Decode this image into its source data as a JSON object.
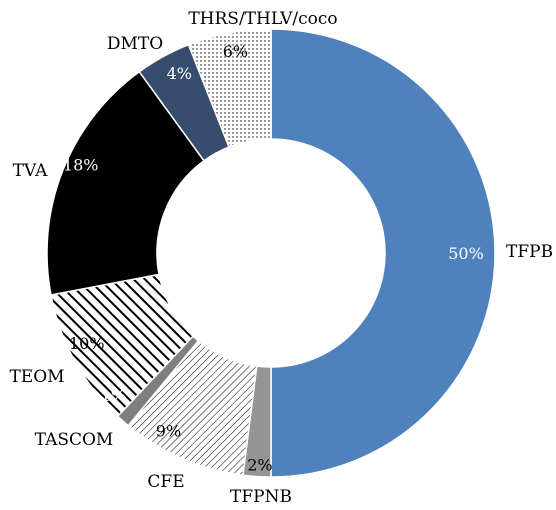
{
  "chart_data": {
    "type": "pie",
    "donut": true,
    "start_angle_deg": 0,
    "direction": "clockwise",
    "slices": [
      {
        "label": "TFPB",
        "value": 50,
        "value_label": "50%",
        "color": "#4f81bd",
        "pattern": "solid",
        "value_text_color": "#ffffff"
      },
      {
        "label": "TFPNB",
        "value": 2,
        "value_label": "2%",
        "color": "#959595",
        "pattern": "solid",
        "value_text_color": "#000000"
      },
      {
        "label": "CFE",
        "value": 9,
        "value_label": "9%",
        "color": "#000000",
        "pattern": "hatch-light",
        "value_text_color": "#000000"
      },
      {
        "label": "TASCOM",
        "value": 1,
        "value_label": "1%",
        "color": "#7f7f7f",
        "pattern": "solid",
        "value_text_color": "#ffffff"
      },
      {
        "label": "TEOM",
        "value": 10,
        "value_label": "10%",
        "color": "#000000",
        "pattern": "hatch-bold",
        "value_text_color": "#000000"
      },
      {
        "label": "TVA",
        "value": 18,
        "value_label": "18%",
        "color": "#000000",
        "pattern": "solid",
        "value_text_color": "#ffffff"
      },
      {
        "label": "DMTO",
        "value": 4,
        "value_label": "4%",
        "color": "#374d6e",
        "pattern": "solid",
        "value_text_color": "#ffffff"
      },
      {
        "label": "THRS/THLV/coco",
        "value": 6,
        "value_label": "6%",
        "color": "#000000",
        "pattern": "dots",
        "value_text_color": "#000000"
      }
    ]
  }
}
